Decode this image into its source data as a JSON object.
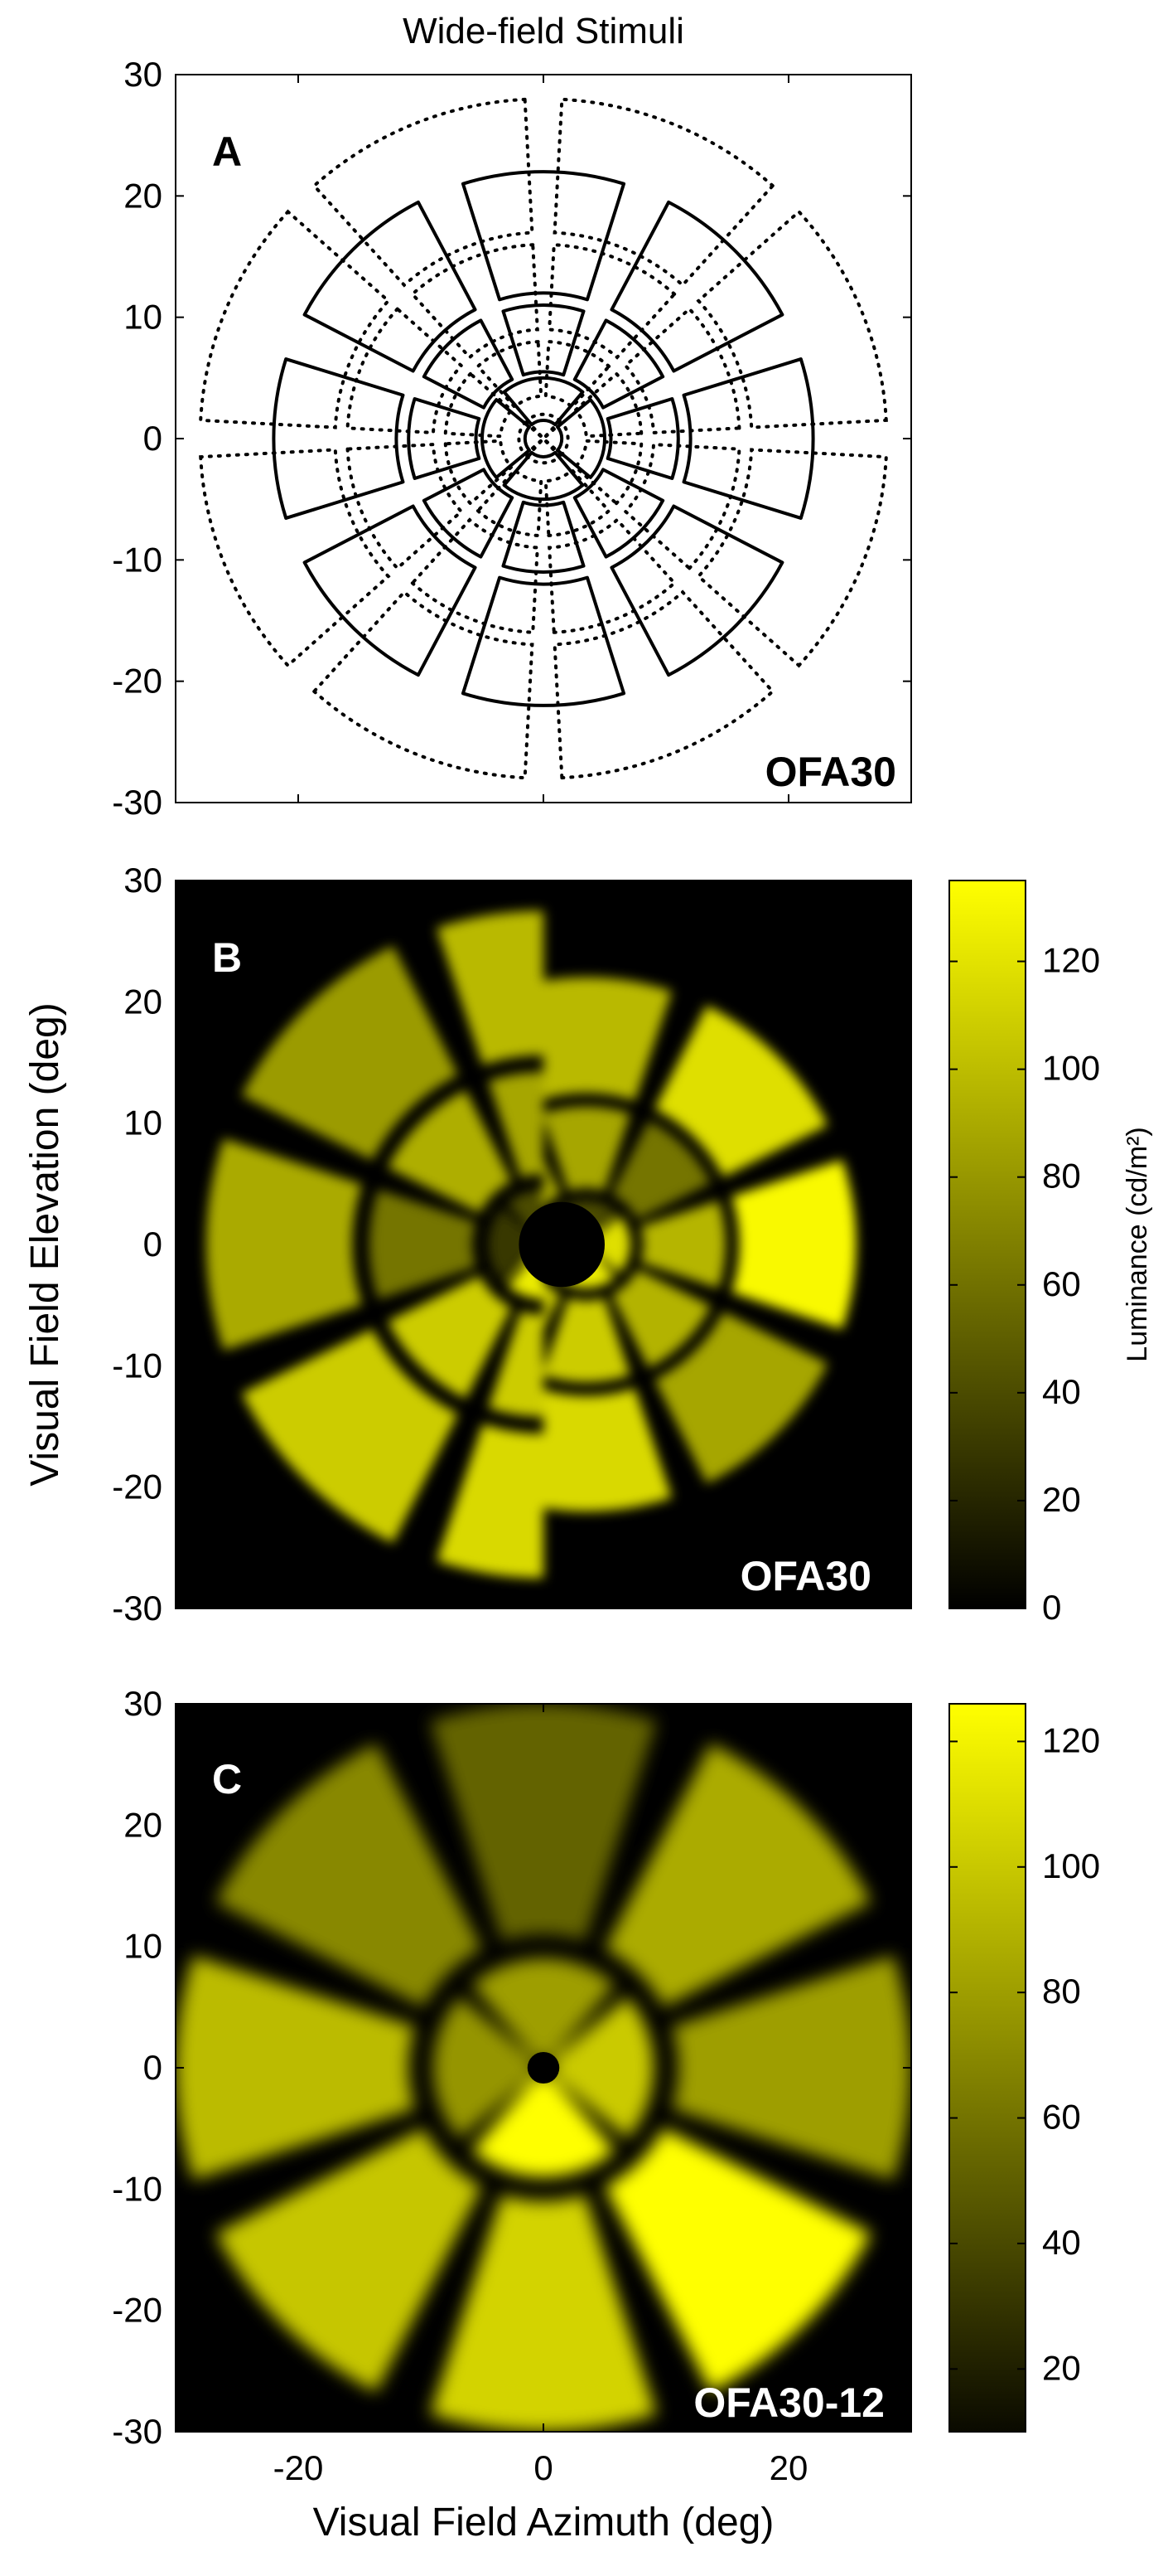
{
  "figure_title": "Wide-field Stimuli",
  "colors": {
    "map_low": "#000000",
    "map_high": "#ffff00",
    "outline": "#000000",
    "tag_light": "#ffffff"
  },
  "chart_data": [
    {
      "type": "diagram",
      "panel_letter": "A",
      "tag": "OFA30",
      "xlim": [
        -30,
        30
      ],
      "ylim": [
        -30,
        30
      ],
      "yticks": [
        30,
        20,
        10,
        0,
        -10,
        -20,
        -30
      ],
      "yticklabels": [
        "30",
        "20",
        "10",
        "0",
        "-10",
        "-20",
        "-30"
      ],
      "xticks": [
        -20,
        0,
        20
      ],
      "xticklabels": [
        "",
        "",
        ""
      ],
      "xlabel": "",
      "ylabel": "",
      "rings_solid": [
        {
          "r_in": 1.5,
          "r_out": 5,
          "n": 4
        },
        {
          "r_in": 5.5,
          "r_out": 11,
          "n": 8
        },
        {
          "r_in": 12,
          "r_out": 22,
          "n": 8
        }
      ],
      "rings_dotted": [
        {
          "r_in": 0,
          "r_out": 2,
          "n": 4
        },
        {
          "r_in": 3.5,
          "r_out": 8,
          "n": 8
        },
        {
          "r_in": 9,
          "r_out": 16,
          "n": 8
        },
        {
          "r_in": 17,
          "r_out": 28,
          "n": 8
        }
      ]
    },
    {
      "type": "heatmap",
      "panel_letter": "B",
      "tag": "OFA30",
      "xlim": [
        -30,
        30
      ],
      "ylim": [
        -30,
        30
      ],
      "yticks": [
        30,
        20,
        10,
        0,
        -10,
        -20,
        -30
      ],
      "yticklabels": [
        "30",
        "20",
        "10",
        "0",
        "-10",
        "-20",
        "-30"
      ],
      "xticks": [
        -20,
        0,
        20
      ],
      "xticklabels": [
        "",
        "",
        ""
      ],
      "xlabel": "",
      "ylabel": "Visual Field  Elevation (deg)",
      "colorbar": {
        "label": "Luminance (cd/m²)",
        "range": [
          0,
          135
        ],
        "ticks": [
          120,
          100,
          80,
          60,
          40,
          20,
          0
        ],
        "ticklabels": [
          "120",
          "100",
          "80",
          "60",
          "40",
          "20",
          "0"
        ]
      },
      "rings": [
        {
          "r_in": 0.3,
          "r_out": 4.5,
          "n": 4,
          "values": [
            40,
            30,
            125,
            118
          ]
        },
        {
          "r_in": 5.8,
          "r_out": 14.2,
          "n": 8,
          "values": [
            62,
            88,
            92,
            62,
            108,
            108,
            95,
            96
          ]
        },
        {
          "r_in": 15.6,
          "r_out": 27.5,
          "n": 8,
          "values": [
            118,
            98,
            82,
            90,
            108,
            115,
            88,
            132
          ]
        }
      ],
      "halves": [
        {
          "side": "left",
          "radius": 30,
          "center_shift": [
            0,
            0
          ]
        },
        {
          "side": "right",
          "radius": 24,
          "center_shift": [
            3.5,
            0
          ]
        }
      ]
    },
    {
      "type": "heatmap",
      "panel_letter": "C",
      "tag": "OFA30-12",
      "xlim": [
        -30,
        30
      ],
      "ylim": [
        -30,
        30
      ],
      "yticks": [
        30,
        20,
        10,
        0,
        -10,
        -20,
        -30
      ],
      "yticklabels": [
        "30",
        "20",
        "10",
        "0",
        "-10",
        "-20",
        "-30"
      ],
      "xticks": [
        -20,
        0,
        20
      ],
      "xticklabels": [
        "-20",
        "0",
        "20"
      ],
      "xlabel": "Visual Field  Azimuth (deg)",
      "ylabel": "",
      "colorbar": {
        "label": "",
        "range": [
          10,
          126
        ],
        "ticks": [
          120,
          100,
          80,
          60,
          40,
          20
        ],
        "ticklabels": [
          "120",
          "100",
          "80",
          "60",
          "40",
          "20"
        ]
      },
      "rings": [
        {
          "r_in": 0.8,
          "r_out": 9,
          "n": 4,
          "values": [
            82,
            78,
            126,
            102
          ]
        },
        {
          "r_in": 11,
          "r_out": 30,
          "n": 8,
          "values": [
            88,
            55,
            72,
            95,
            100,
            106,
            126,
            82
          ]
        }
      ]
    }
  ]
}
